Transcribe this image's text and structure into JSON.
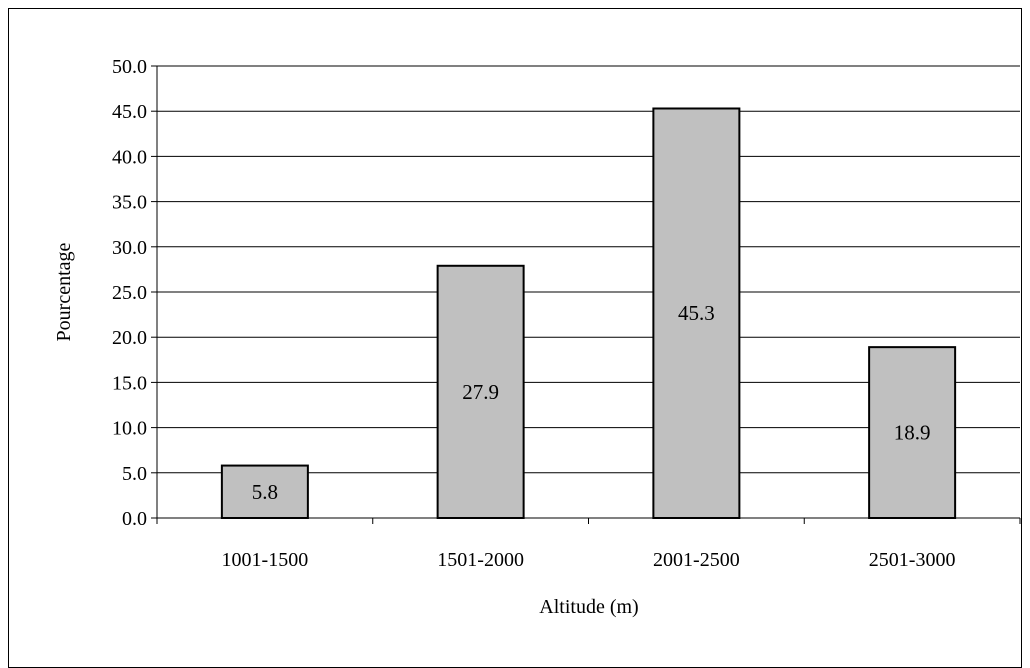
{
  "chart_data": {
    "type": "bar",
    "title": "",
    "xlabel": "Altitude (m)",
    "ylabel": "Pourcentage",
    "categories": [
      "1001-1500",
      "1501-2000",
      "2001-2500",
      "2501-3000"
    ],
    "values": [
      5.8,
      27.9,
      45.3,
      18.9
    ],
    "data_labels": [
      "5.8",
      "27.9",
      "45.3",
      "18.9"
    ],
    "ylim": [
      0,
      50
    ],
    "yticks": [
      0,
      5,
      10,
      15,
      20,
      25,
      30,
      35,
      40,
      45,
      50
    ],
    "ytick_labels": [
      "0.0",
      "5.0",
      "10.0",
      "15.0",
      "20.0",
      "25.0",
      "30.0",
      "35.0",
      "40.0",
      "45.0",
      "50.0"
    ],
    "grid": "horizontal",
    "legend": "none",
    "colors": {
      "bar_fill": "#c0c0c0",
      "bar_stroke": "#000000",
      "grid": "#000000",
      "axis": "#000000",
      "background": "#ffffff"
    }
  }
}
